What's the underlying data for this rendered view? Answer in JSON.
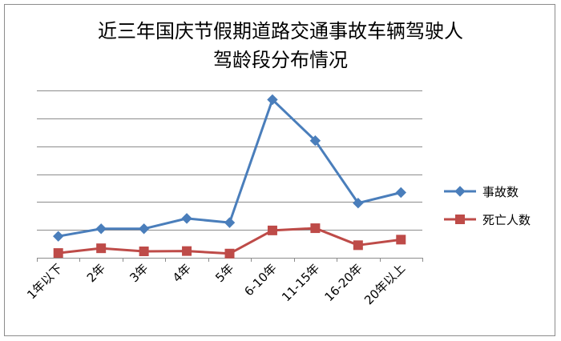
{
  "chart_data": {
    "type": "line",
    "title": "近三年国庆节假期道路交通事故车辆驾驶人驾龄段分布情况",
    "title_lines": [
      "近三年国庆节假期道路交通事故车辆驾驶人",
      "驾龄段分布情况"
    ],
    "categories": [
      "1年以下",
      "2年",
      "3年",
      "4年",
      "5年",
      "6-10年",
      "11-15年",
      "16-20年",
      "20年以上"
    ],
    "series": [
      {
        "name": "事故数",
        "color": "#4a7ebb",
        "marker": "diamond",
        "values": [
          77,
          104,
          104,
          141,
          126,
          567,
          420,
          196,
          234
        ]
      },
      {
        "name": "死亡人数",
        "color": "#be4b48",
        "marker": "square",
        "values": [
          17,
          34,
          23,
          24,
          15,
          98,
          106,
          45,
          65
        ]
      }
    ],
    "ylim": [
      0,
      600
    ],
    "y_gridlines": [
      0,
      100,
      200,
      300,
      400,
      500,
      600
    ],
    "y_tick_labels_shown": false,
    "grid": true,
    "legend_position": "right"
  }
}
